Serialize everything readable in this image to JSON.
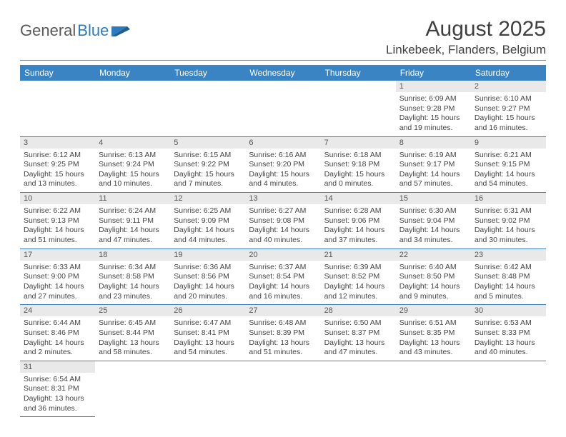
{
  "brand": {
    "part1": "General",
    "part2": "Blue"
  },
  "title": "August 2025",
  "location": "Linkebeek, Flanders, Belgium",
  "header_bg": "#3b84c4",
  "header_text": "#ffffff",
  "daynum_bg": "#e9e9e9",
  "rule_color": "#3b84c4",
  "dow": [
    "Sunday",
    "Monday",
    "Tuesday",
    "Wednesday",
    "Thursday",
    "Friday",
    "Saturday"
  ],
  "weeks": [
    [
      null,
      null,
      null,
      null,
      null,
      {
        "n": "1",
        "sr": "Sunrise: 6:09 AM",
        "ss": "Sunset: 9:28 PM",
        "dl1": "Daylight: 15 hours",
        "dl2": "and 19 minutes."
      },
      {
        "n": "2",
        "sr": "Sunrise: 6:10 AM",
        "ss": "Sunset: 9:27 PM",
        "dl1": "Daylight: 15 hours",
        "dl2": "and 16 minutes."
      }
    ],
    [
      {
        "n": "3",
        "sr": "Sunrise: 6:12 AM",
        "ss": "Sunset: 9:25 PM",
        "dl1": "Daylight: 15 hours",
        "dl2": "and 13 minutes."
      },
      {
        "n": "4",
        "sr": "Sunrise: 6:13 AM",
        "ss": "Sunset: 9:24 PM",
        "dl1": "Daylight: 15 hours",
        "dl2": "and 10 minutes."
      },
      {
        "n": "5",
        "sr": "Sunrise: 6:15 AM",
        "ss": "Sunset: 9:22 PM",
        "dl1": "Daylight: 15 hours",
        "dl2": "and 7 minutes."
      },
      {
        "n": "6",
        "sr": "Sunrise: 6:16 AM",
        "ss": "Sunset: 9:20 PM",
        "dl1": "Daylight: 15 hours",
        "dl2": "and 4 minutes."
      },
      {
        "n": "7",
        "sr": "Sunrise: 6:18 AM",
        "ss": "Sunset: 9:18 PM",
        "dl1": "Daylight: 15 hours",
        "dl2": "and 0 minutes."
      },
      {
        "n": "8",
        "sr": "Sunrise: 6:19 AM",
        "ss": "Sunset: 9:17 PM",
        "dl1": "Daylight: 14 hours",
        "dl2": "and 57 minutes."
      },
      {
        "n": "9",
        "sr": "Sunrise: 6:21 AM",
        "ss": "Sunset: 9:15 PM",
        "dl1": "Daylight: 14 hours",
        "dl2": "and 54 minutes."
      }
    ],
    [
      {
        "n": "10",
        "sr": "Sunrise: 6:22 AM",
        "ss": "Sunset: 9:13 PM",
        "dl1": "Daylight: 14 hours",
        "dl2": "and 51 minutes."
      },
      {
        "n": "11",
        "sr": "Sunrise: 6:24 AM",
        "ss": "Sunset: 9:11 PM",
        "dl1": "Daylight: 14 hours",
        "dl2": "and 47 minutes."
      },
      {
        "n": "12",
        "sr": "Sunrise: 6:25 AM",
        "ss": "Sunset: 9:09 PM",
        "dl1": "Daylight: 14 hours",
        "dl2": "and 44 minutes."
      },
      {
        "n": "13",
        "sr": "Sunrise: 6:27 AM",
        "ss": "Sunset: 9:08 PM",
        "dl1": "Daylight: 14 hours",
        "dl2": "and 40 minutes."
      },
      {
        "n": "14",
        "sr": "Sunrise: 6:28 AM",
        "ss": "Sunset: 9:06 PM",
        "dl1": "Daylight: 14 hours",
        "dl2": "and 37 minutes."
      },
      {
        "n": "15",
        "sr": "Sunrise: 6:30 AM",
        "ss": "Sunset: 9:04 PM",
        "dl1": "Daylight: 14 hours",
        "dl2": "and 34 minutes."
      },
      {
        "n": "16",
        "sr": "Sunrise: 6:31 AM",
        "ss": "Sunset: 9:02 PM",
        "dl1": "Daylight: 14 hours",
        "dl2": "and 30 minutes."
      }
    ],
    [
      {
        "n": "17",
        "sr": "Sunrise: 6:33 AM",
        "ss": "Sunset: 9:00 PM",
        "dl1": "Daylight: 14 hours",
        "dl2": "and 27 minutes."
      },
      {
        "n": "18",
        "sr": "Sunrise: 6:34 AM",
        "ss": "Sunset: 8:58 PM",
        "dl1": "Daylight: 14 hours",
        "dl2": "and 23 minutes."
      },
      {
        "n": "19",
        "sr": "Sunrise: 6:36 AM",
        "ss": "Sunset: 8:56 PM",
        "dl1": "Daylight: 14 hours",
        "dl2": "and 20 minutes."
      },
      {
        "n": "20",
        "sr": "Sunrise: 6:37 AM",
        "ss": "Sunset: 8:54 PM",
        "dl1": "Daylight: 14 hours",
        "dl2": "and 16 minutes."
      },
      {
        "n": "21",
        "sr": "Sunrise: 6:39 AM",
        "ss": "Sunset: 8:52 PM",
        "dl1": "Daylight: 14 hours",
        "dl2": "and 12 minutes."
      },
      {
        "n": "22",
        "sr": "Sunrise: 6:40 AM",
        "ss": "Sunset: 8:50 PM",
        "dl1": "Daylight: 14 hours",
        "dl2": "and 9 minutes."
      },
      {
        "n": "23",
        "sr": "Sunrise: 6:42 AM",
        "ss": "Sunset: 8:48 PM",
        "dl1": "Daylight: 14 hours",
        "dl2": "and 5 minutes."
      }
    ],
    [
      {
        "n": "24",
        "sr": "Sunrise: 6:44 AM",
        "ss": "Sunset: 8:46 PM",
        "dl1": "Daylight: 14 hours",
        "dl2": "and 2 minutes."
      },
      {
        "n": "25",
        "sr": "Sunrise: 6:45 AM",
        "ss": "Sunset: 8:44 PM",
        "dl1": "Daylight: 13 hours",
        "dl2": "and 58 minutes."
      },
      {
        "n": "26",
        "sr": "Sunrise: 6:47 AM",
        "ss": "Sunset: 8:41 PM",
        "dl1": "Daylight: 13 hours",
        "dl2": "and 54 minutes."
      },
      {
        "n": "27",
        "sr": "Sunrise: 6:48 AM",
        "ss": "Sunset: 8:39 PM",
        "dl1": "Daylight: 13 hours",
        "dl2": "and 51 minutes."
      },
      {
        "n": "28",
        "sr": "Sunrise: 6:50 AM",
        "ss": "Sunset: 8:37 PM",
        "dl1": "Daylight: 13 hours",
        "dl2": "and 47 minutes."
      },
      {
        "n": "29",
        "sr": "Sunrise: 6:51 AM",
        "ss": "Sunset: 8:35 PM",
        "dl1": "Daylight: 13 hours",
        "dl2": "and 43 minutes."
      },
      {
        "n": "30",
        "sr": "Sunrise: 6:53 AM",
        "ss": "Sunset: 8:33 PM",
        "dl1": "Daylight: 13 hours",
        "dl2": "and 40 minutes."
      }
    ],
    [
      {
        "n": "31",
        "sr": "Sunrise: 6:54 AM",
        "ss": "Sunset: 8:31 PM",
        "dl1": "Daylight: 13 hours",
        "dl2": "and 36 minutes."
      },
      null,
      null,
      null,
      null,
      null,
      null
    ]
  ]
}
